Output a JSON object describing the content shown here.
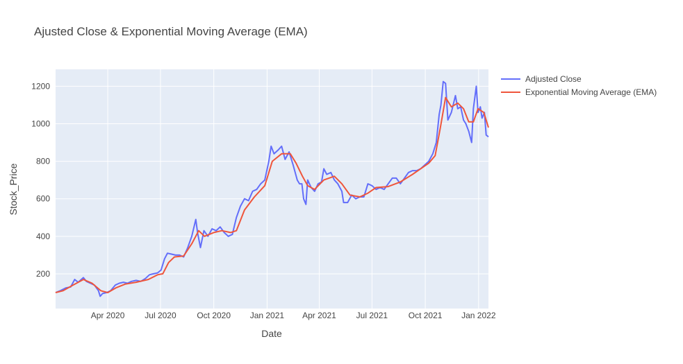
{
  "chart_data": {
    "type": "line",
    "title": "Ajusted Close & Exponential Moving Average (EMA)",
    "xlabel": "Date",
    "ylabel": "Stock_Price",
    "xlim": [
      "2020-01-02",
      "2022-01-18"
    ],
    "ylim": [
      15,
      1290
    ],
    "grid": true,
    "legend_position": "top-right",
    "x_ticks": [
      {
        "date": "2020-04-01",
        "label": "Apr 2020"
      },
      {
        "date": "2020-07-01",
        "label": "Jul 2020"
      },
      {
        "date": "2020-10-01",
        "label": "Oct 2020"
      },
      {
        "date": "2021-01-01",
        "label": "Jan 2021"
      },
      {
        "date": "2021-04-01",
        "label": "Apr 2021"
      },
      {
        "date": "2021-07-01",
        "label": "Jul 2021"
      },
      {
        "date": "2021-10-01",
        "label": "Oct 2021"
      },
      {
        "date": "2022-01-01",
        "label": "Jan 2022"
      }
    ],
    "y_ticks": [
      200,
      400,
      600,
      800,
      1000,
      1200
    ],
    "series": [
      {
        "name": "Adjusted Close",
        "color": "#636efa",
        "points": [
          [
            "2020-01-02",
            100
          ],
          [
            "2020-01-10",
            110
          ],
          [
            "2020-01-20",
            125
          ],
          [
            "2020-01-28",
            130
          ],
          [
            "2020-02-04",
            170
          ],
          [
            "2020-02-10",
            155
          ],
          [
            "2020-02-19",
            180
          ],
          [
            "2020-02-24",
            160
          ],
          [
            "2020-03-02",
            150
          ],
          [
            "2020-03-09",
            140
          ],
          [
            "2020-03-16",
            110
          ],
          [
            "2020-03-19",
            80
          ],
          [
            "2020-03-23",
            95
          ],
          [
            "2020-03-30",
            100
          ],
          [
            "2020-04-06",
            110
          ],
          [
            "2020-04-14",
            140
          ],
          [
            "2020-04-21",
            150
          ],
          [
            "2020-04-28",
            155
          ],
          [
            "2020-05-05",
            150
          ],
          [
            "2020-05-12",
            160
          ],
          [
            "2020-05-20",
            165
          ],
          [
            "2020-05-28",
            160
          ],
          [
            "2020-06-05",
            175
          ],
          [
            "2020-06-12",
            195
          ],
          [
            "2020-06-19",
            200
          ],
          [
            "2020-06-26",
            205
          ],
          [
            "2020-07-02",
            220
          ],
          [
            "2020-07-08",
            280
          ],
          [
            "2020-07-13",
            310
          ],
          [
            "2020-07-20",
            305
          ],
          [
            "2020-07-27",
            300
          ],
          [
            "2020-08-03",
            300
          ],
          [
            "2020-08-10",
            290
          ],
          [
            "2020-08-17",
            340
          ],
          [
            "2020-08-24",
            400
          ],
          [
            "2020-08-31",
            490
          ],
          [
            "2020-09-03",
            420
          ],
          [
            "2020-09-08",
            340
          ],
          [
            "2020-09-14",
            430
          ],
          [
            "2020-09-21",
            400
          ],
          [
            "2020-09-28",
            440
          ],
          [
            "2020-10-05",
            430
          ],
          [
            "2020-10-12",
            450
          ],
          [
            "2020-10-19",
            420
          ],
          [
            "2020-10-26",
            400
          ],
          [
            "2020-11-02",
            410
          ],
          [
            "2020-11-09",
            500
          ],
          [
            "2020-11-16",
            560
          ],
          [
            "2020-11-23",
            600
          ],
          [
            "2020-11-30",
            590
          ],
          [
            "2020-12-07",
            640
          ],
          [
            "2020-12-14",
            650
          ],
          [
            "2020-12-21",
            680
          ],
          [
            "2020-12-28",
            700
          ],
          [
            "2021-01-04",
            800
          ],
          [
            "2021-01-08",
            880
          ],
          [
            "2021-01-13",
            840
          ],
          [
            "2021-01-20",
            860
          ],
          [
            "2021-01-26",
            880
          ],
          [
            "2021-02-01",
            810
          ],
          [
            "2021-02-08",
            850
          ],
          [
            "2021-02-15",
            780
          ],
          [
            "2021-02-22",
            700
          ],
          [
            "2021-02-26",
            680
          ],
          [
            "2021-03-02",
            680
          ],
          [
            "2021-03-05",
            600
          ],
          [
            "2021-03-09",
            570
          ],
          [
            "2021-03-12",
            700
          ],
          [
            "2021-03-18",
            660
          ],
          [
            "2021-03-24",
            640
          ],
          [
            "2021-03-30",
            680
          ],
          [
            "2021-04-05",
            690
          ],
          [
            "2021-04-09",
            760
          ],
          [
            "2021-04-14",
            730
          ],
          [
            "2021-04-21",
            740
          ],
          [
            "2021-04-27",
            700
          ],
          [
            "2021-05-03",
            680
          ],
          [
            "2021-05-10",
            640
          ],
          [
            "2021-05-13",
            580
          ],
          [
            "2021-05-20",
            580
          ],
          [
            "2021-05-27",
            620
          ],
          [
            "2021-06-03",
            600
          ],
          [
            "2021-06-10",
            610
          ],
          [
            "2021-06-17",
            610
          ],
          [
            "2021-06-24",
            680
          ],
          [
            "2021-07-01",
            670
          ],
          [
            "2021-07-08",
            650
          ],
          [
            "2021-07-15",
            660
          ],
          [
            "2021-07-22",
            650
          ],
          [
            "2021-07-29",
            680
          ],
          [
            "2021-08-05",
            710
          ],
          [
            "2021-08-12",
            710
          ],
          [
            "2021-08-19",
            680
          ],
          [
            "2021-08-26",
            710
          ],
          [
            "2021-09-02",
            740
          ],
          [
            "2021-09-09",
            750
          ],
          [
            "2021-09-16",
            750
          ],
          [
            "2021-09-23",
            760
          ],
          [
            "2021-09-30",
            780
          ],
          [
            "2021-10-07",
            800
          ],
          [
            "2021-10-14",
            840
          ],
          [
            "2021-10-20",
            900
          ],
          [
            "2021-10-25",
            1050
          ],
          [
            "2021-10-28",
            1100
          ],
          [
            "2021-11-01",
            1225
          ],
          [
            "2021-11-05",
            1215
          ],
          [
            "2021-11-09",
            1020
          ],
          [
            "2021-11-15",
            1060
          ],
          [
            "2021-11-22",
            1150
          ],
          [
            "2021-11-26",
            1080
          ],
          [
            "2021-12-01",
            1090
          ],
          [
            "2021-12-06",
            1020
          ],
          [
            "2021-12-10",
            1000
          ],
          [
            "2021-12-15",
            960
          ],
          [
            "2021-12-20",
            900
          ],
          [
            "2021-12-23",
            1080
          ],
          [
            "2021-12-28",
            1200
          ],
          [
            "2021-12-31",
            1060
          ],
          [
            "2022-01-04",
            1090
          ],
          [
            "2022-01-07",
            1030
          ],
          [
            "2022-01-11",
            1060
          ],
          [
            "2022-01-14",
            940
          ],
          [
            "2022-01-18",
            930
          ]
        ]
      },
      {
        "name": "Exponential Moving Average (EMA)",
        "color": "#ef553b",
        "points": [
          [
            "2020-01-02",
            100
          ],
          [
            "2020-01-15",
            110
          ],
          [
            "2020-02-01",
            140
          ],
          [
            "2020-02-19",
            170
          ],
          [
            "2020-03-05",
            150
          ],
          [
            "2020-03-20",
            110
          ],
          [
            "2020-04-01",
            100
          ],
          [
            "2020-04-15",
            125
          ],
          [
            "2020-05-01",
            145
          ],
          [
            "2020-05-20",
            155
          ],
          [
            "2020-06-10",
            170
          ],
          [
            "2020-06-26",
            195
          ],
          [
            "2020-07-05",
            200
          ],
          [
            "2020-07-15",
            260
          ],
          [
            "2020-07-25",
            290
          ],
          [
            "2020-08-10",
            295
          ],
          [
            "2020-08-24",
            360
          ],
          [
            "2020-09-05",
            430
          ],
          [
            "2020-09-15",
            400
          ],
          [
            "2020-10-01",
            420
          ],
          [
            "2020-10-15",
            430
          ],
          [
            "2020-10-30",
            420
          ],
          [
            "2020-11-09",
            430
          ],
          [
            "2020-11-23",
            540
          ],
          [
            "2020-12-10",
            610
          ],
          [
            "2020-12-28",
            670
          ],
          [
            "2021-01-10",
            800
          ],
          [
            "2021-01-26",
            840
          ],
          [
            "2021-02-10",
            840
          ],
          [
            "2021-02-20",
            790
          ],
          [
            "2021-03-03",
            720
          ],
          [
            "2021-03-12",
            670
          ],
          [
            "2021-03-24",
            650
          ],
          [
            "2021-04-09",
            700
          ],
          [
            "2021-04-27",
            720
          ],
          [
            "2021-05-10",
            680
          ],
          [
            "2021-05-24",
            620
          ],
          [
            "2021-06-10",
            610
          ],
          [
            "2021-06-24",
            630
          ],
          [
            "2021-07-08",
            660
          ],
          [
            "2021-07-29",
            665
          ],
          [
            "2021-08-19",
            690
          ],
          [
            "2021-09-09",
            730
          ],
          [
            "2021-09-23",
            760
          ],
          [
            "2021-10-07",
            790
          ],
          [
            "2021-10-18",
            830
          ],
          [
            "2021-10-27",
            980
          ],
          [
            "2021-11-05",
            1140
          ],
          [
            "2021-11-15",
            1090
          ],
          [
            "2021-11-26",
            1110
          ],
          [
            "2021-12-06",
            1080
          ],
          [
            "2021-12-15",
            1010
          ],
          [
            "2021-12-23",
            1010
          ],
          [
            "2021-12-31",
            1080
          ],
          [
            "2022-01-10",
            1060
          ],
          [
            "2022-01-18",
            980
          ]
        ]
      }
    ]
  }
}
